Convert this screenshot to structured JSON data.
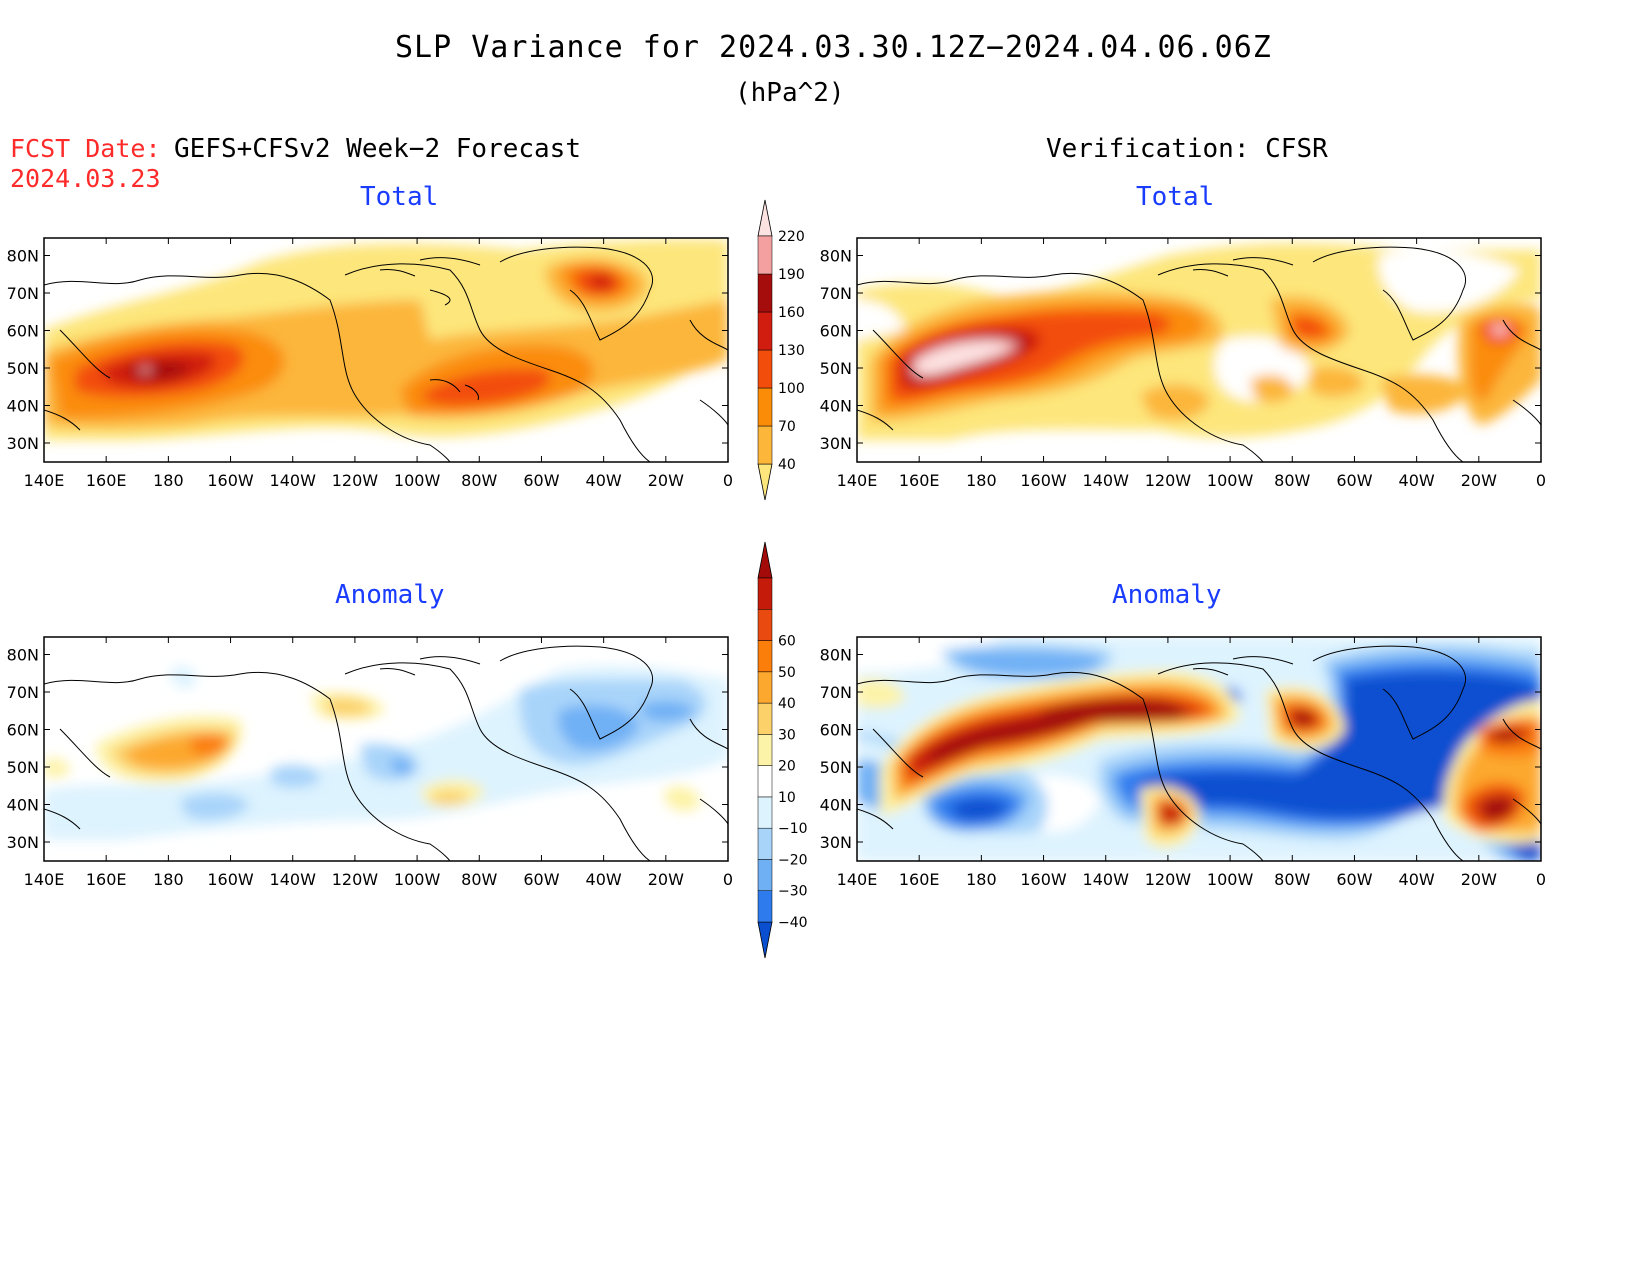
{
  "title": "SLP Variance for 2024.03.30.12Z−2024.04.06.06Z",
  "units": "(hPa^2)",
  "forecast_date_label": "FCST Date:",
  "forecast_date": "2024.03.23",
  "left_header": "GEFS+CFSv2 Week−2 Forecast",
  "right_header": "Verification: CFSR",
  "panels": {
    "forecast_total": {
      "title": "Total"
    },
    "verification_total": {
      "title": "Total"
    },
    "forecast_anomaly": {
      "title": "Anomaly"
    },
    "verification_anomaly": {
      "title": "Anomaly"
    }
  },
  "axes": {
    "lon_labels": [
      "140E",
      "160E",
      "180",
      "160W",
      "140W",
      "120W",
      "100W",
      "80W",
      "60W",
      "40W",
      "20W",
      "0"
    ],
    "lat_labels": [
      "30N",
      "40N",
      "50N",
      "60N",
      "70N",
      "80N"
    ]
  },
  "total_colorbar": {
    "levels": [
      "40",
      "70",
      "100",
      "130",
      "160",
      "190",
      "220"
    ],
    "colors": [
      "#fde67c",
      "#fcb63a",
      "#fb8c07",
      "#f34d0c",
      "#d01d10",
      "#a50c0c",
      "#f4a0a0",
      "#fde2e2"
    ]
  },
  "anomaly_colorbar": {
    "levels": [
      "−40",
      "−30",
      "−20",
      "−10",
      "10",
      "20",
      "30",
      "40",
      "50",
      "60"
    ],
    "colors": [
      "#0a4fd0",
      "#2e7bee",
      "#6fb0f5",
      "#a9d4fa",
      "#ddf3fe",
      "#ffffff",
      "#fdf3a8",
      "#fcd16a",
      "#fca82f",
      "#fb7e0a",
      "#e84a10",
      "#c51b0b",
      "#a30b0b"
    ]
  }
}
